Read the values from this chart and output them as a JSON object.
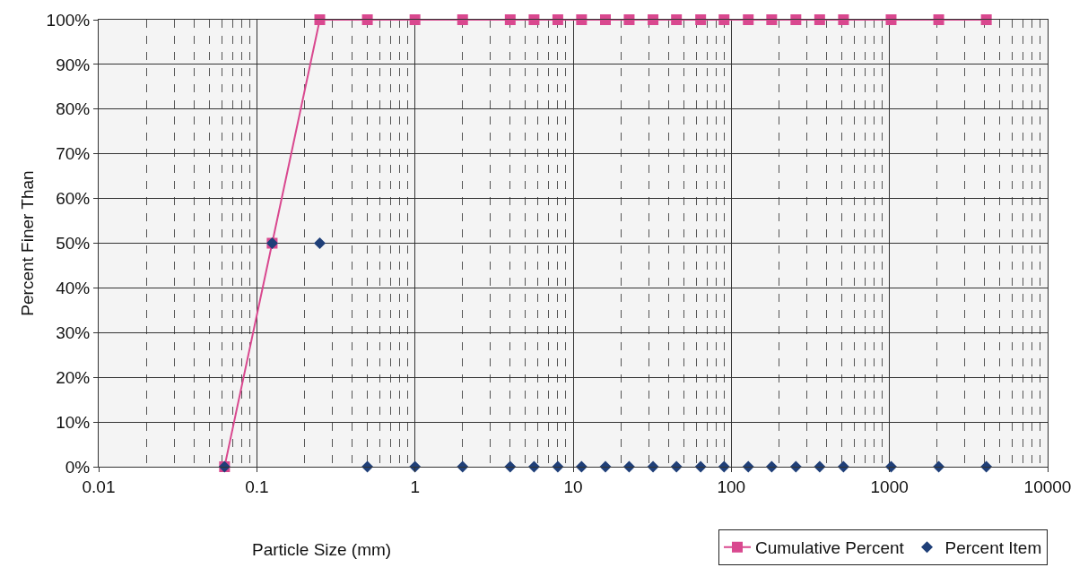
{
  "chart_data": {
    "type": "scatter",
    "xlabel": "Particle Size (mm)",
    "ylabel": "Percent Finer Than",
    "x": [
      0.0625,
      0.125,
      0.25,
      0.5,
      1,
      2,
      4,
      5.66,
      8,
      11.3,
      16,
      22.6,
      32,
      45,
      64,
      90,
      128,
      180,
      256,
      362,
      512,
      1024,
      2048,
      4096
    ],
    "series": [
      {
        "name": "Cumulative Percent",
        "type": "line",
        "color": "#d9488f",
        "marker": "square",
        "values": [
          0,
          50,
          100,
          100,
          100,
          100,
          100,
          100,
          100,
          100,
          100,
          100,
          100,
          100,
          100,
          100,
          100,
          100,
          100,
          100,
          100,
          100,
          100,
          100
        ]
      },
      {
        "name": "Percent Item",
        "color": "#1f3f78",
        "marker": "diamond",
        "values": [
          0,
          50,
          50,
          0,
          0,
          0,
          0,
          0,
          0,
          0,
          0,
          0,
          0,
          0,
          0,
          0,
          0,
          0,
          0,
          0,
          0,
          0,
          0,
          0
        ]
      }
    ],
    "log": "x",
    "xlim": [
      0.01,
      10000
    ],
    "xticks": [
      0.01,
      0.1,
      1,
      10,
      100,
      1000,
      10000
    ],
    "ylim": [
      0,
      100
    ],
    "yticks": [
      {
        "value": 0,
        "label": "0%"
      },
      {
        "value": 10,
        "label": "10%"
      },
      {
        "value": 20,
        "label": "20%"
      },
      {
        "value": 30,
        "label": "30%"
      },
      {
        "value": 40,
        "label": "40%"
      },
      {
        "value": 50,
        "label": "50%"
      },
      {
        "value": 60,
        "label": "60%"
      },
      {
        "value": 70,
        "label": "70%"
      },
      {
        "value": 80,
        "label": "80%"
      },
      {
        "value": 90,
        "label": "90%"
      },
      {
        "value": 100,
        "label": "100%"
      }
    ],
    "grid": true,
    "legend": "bottom right"
  }
}
